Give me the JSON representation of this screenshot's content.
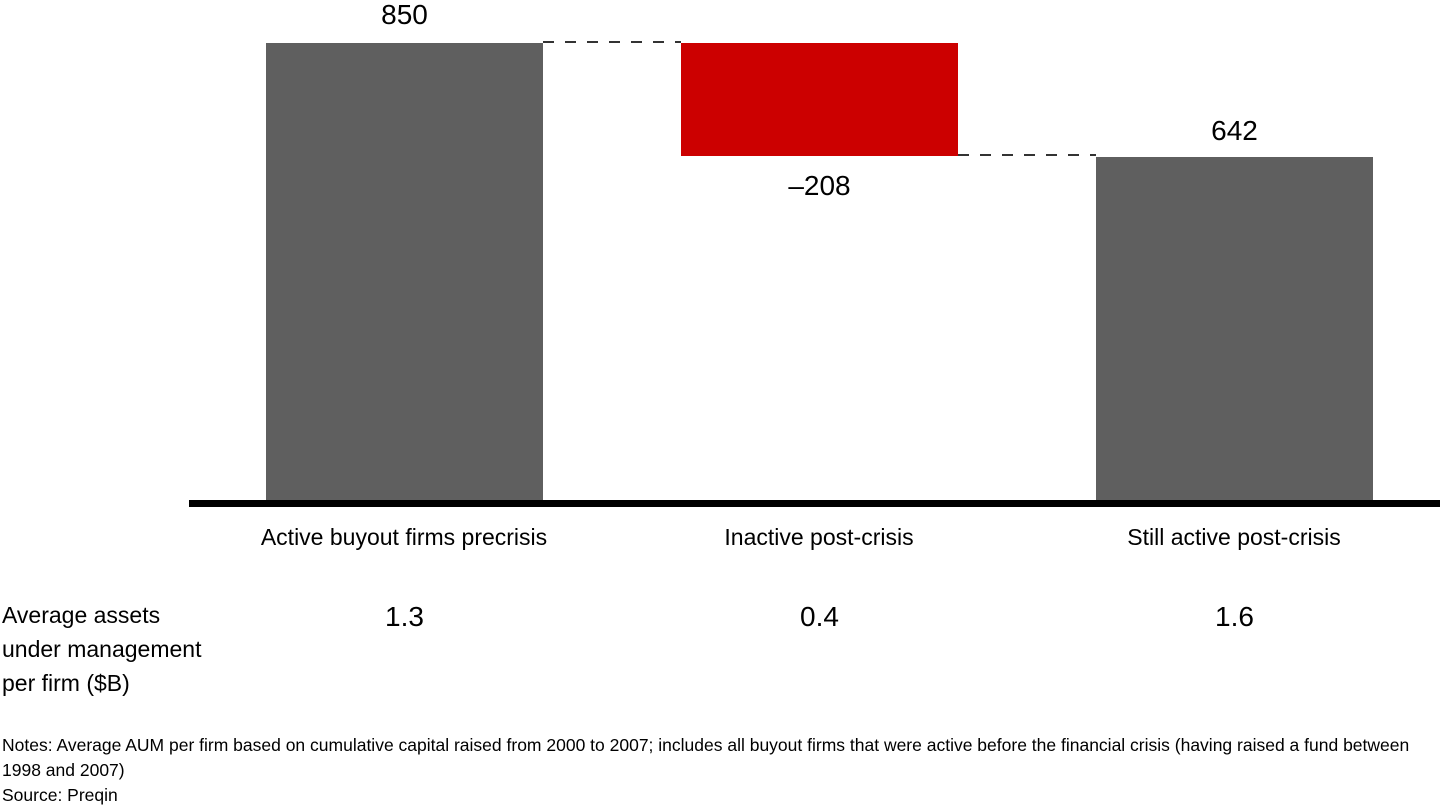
{
  "chart_data": {
    "type": "bar",
    "subtype": "waterfall",
    "title": "",
    "categories": [
      "Active buyout firms precrisis",
      "Inactive post-crisis",
      "Still active post-crisis"
    ],
    "values": [
      850,
      -208,
      642
    ],
    "bar_labels": [
      "850",
      "–208",
      "642"
    ],
    "bar_roles": [
      "start-total",
      "decrease",
      "end-total"
    ],
    "ylim": [
      0,
      850
    ],
    "grid": false,
    "legend": false,
    "colors": {
      "total_bar": "#5f5f5f",
      "decrease_bar": "#cc0000",
      "baseline": "#000000",
      "connector": "#333333"
    },
    "aum_row": {
      "label_lines": [
        "Average assets",
        "under management",
        "per firm ($B)"
      ],
      "values": [
        "1.3",
        "0.4",
        "1.6"
      ]
    }
  },
  "footer": {
    "notes": "Notes: Average AUM per firm based on cumulative capital raised from 2000 to 2007; includes all buyout firms that were active before the financial crisis (having raised a fund between 1998 and 2007)",
    "source": "Source: Preqin"
  }
}
